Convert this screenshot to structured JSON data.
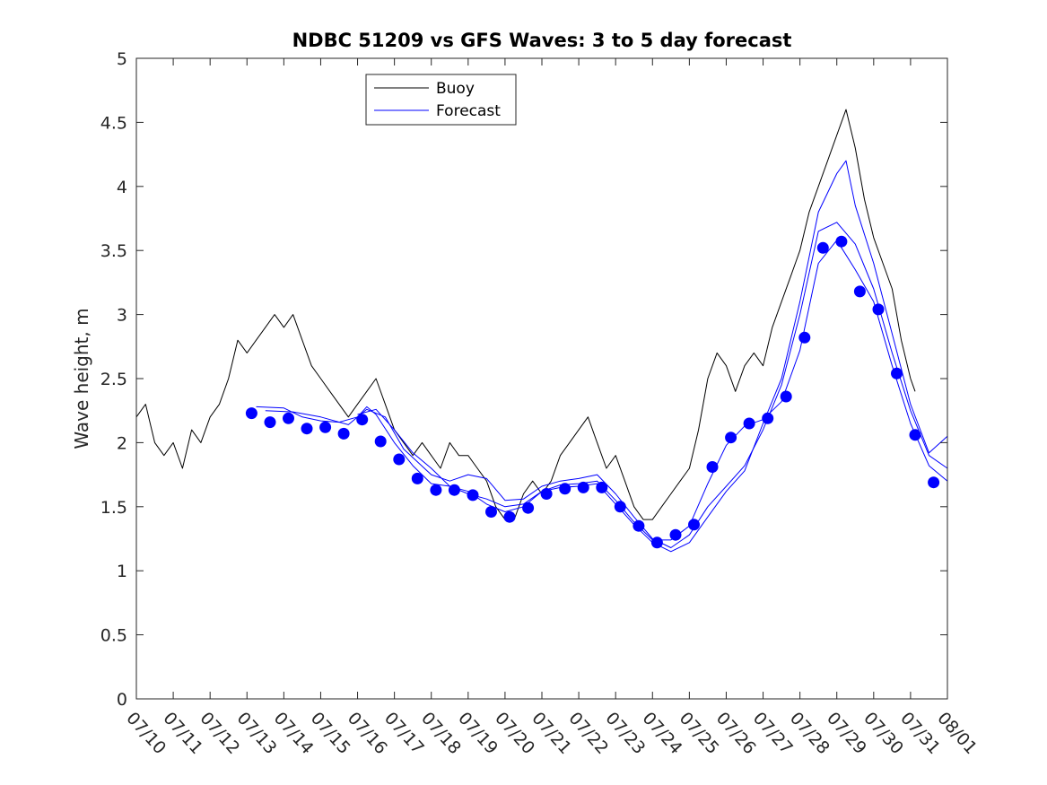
{
  "chart_data": {
    "type": "line",
    "title": "NDBC 51209 vs GFS Waves: 3 to 5 day forecast",
    "xlabel": "",
    "ylabel": "Wave height, m",
    "xlim": [
      "07/10",
      "08/01"
    ],
    "ylim": [
      0,
      5
    ],
    "x_ticks": [
      "07/10",
      "07/11",
      "07/12",
      "07/13",
      "07/14",
      "07/15",
      "07/16",
      "07/17",
      "07/18",
      "07/19",
      "07/20",
      "07/21",
      "07/22",
      "07/23",
      "07/24",
      "07/25",
      "07/26",
      "07/27",
      "07/28",
      "07/29",
      "07/30",
      "07/31",
      "08/01"
    ],
    "y_ticks": [
      "0",
      "0.5",
      "1",
      "1.5",
      "2",
      "2.5",
      "3",
      "3.5",
      "4",
      "4.5",
      "5"
    ],
    "grid": false,
    "legend": {
      "position": "top-left",
      "entries": [
        "Buoy",
        "Forecast"
      ]
    },
    "colors": {
      "buoy": "#000000",
      "forecast": "#0000ff"
    },
    "series": [
      {
        "name": "Buoy",
        "style": "line",
        "points": [
          [
            "07/10 00:00",
            2.2
          ],
          [
            "07/10 06:00",
            2.3
          ],
          [
            "07/10 12:00",
            2.0
          ],
          [
            "07/10 18:00",
            1.9
          ],
          [
            "07/11 00:00",
            2.0
          ],
          [
            "07/11 06:00",
            1.8
          ],
          [
            "07/11 12:00",
            2.1
          ],
          [
            "07/11 18:00",
            2.0
          ],
          [
            "07/12 00:00",
            2.2
          ],
          [
            "07/12 06:00",
            2.3
          ],
          [
            "07/12 12:00",
            2.5
          ],
          [
            "07/12 18:00",
            2.8
          ],
          [
            "07/13 00:00",
            2.7
          ],
          [
            "07/13 06:00",
            2.8
          ],
          [
            "07/13 12:00",
            2.9
          ],
          [
            "07/13 18:00",
            3.0
          ],
          [
            "07/14 00:00",
            2.9
          ],
          [
            "07/14 06:00",
            3.0
          ],
          [
            "07/14 12:00",
            2.8
          ],
          [
            "07/14 18:00",
            2.6
          ],
          [
            "07/15 00:00",
            2.5
          ],
          [
            "07/15 06:00",
            2.4
          ],
          [
            "07/15 12:00",
            2.3
          ],
          [
            "07/15 18:00",
            2.2
          ],
          [
            "07/16 00:00",
            2.3
          ],
          [
            "07/16 06:00",
            2.4
          ],
          [
            "07/16 12:00",
            2.5
          ],
          [
            "07/16 18:00",
            2.3
          ],
          [
            "07/17 00:00",
            2.1
          ],
          [
            "07/17 06:00",
            2.0
          ],
          [
            "07/17 12:00",
            1.9
          ],
          [
            "07/17 18:00",
            2.0
          ],
          [
            "07/18 00:00",
            1.9
          ],
          [
            "07/18 06:00",
            1.8
          ],
          [
            "07/18 12:00",
            2.0
          ],
          [
            "07/18 18:00",
            1.9
          ],
          [
            "07/19 00:00",
            1.9
          ],
          [
            "07/19 06:00",
            1.8
          ],
          [
            "07/19 12:00",
            1.7
          ],
          [
            "07/19 18:00",
            1.5
          ],
          [
            "07/20 00:00",
            1.4
          ],
          [
            "07/20 06:00",
            1.4
          ],
          [
            "07/20 12:00",
            1.6
          ],
          [
            "07/20 18:00",
            1.7
          ],
          [
            "07/21 00:00",
            1.6
          ],
          [
            "07/21 06:00",
            1.7
          ],
          [
            "07/21 12:00",
            1.9
          ],
          [
            "07/21 18:00",
            2.0
          ],
          [
            "07/22 00:00",
            2.1
          ],
          [
            "07/22 06:00",
            2.2
          ],
          [
            "07/22 12:00",
            2.0
          ],
          [
            "07/22 18:00",
            1.8
          ],
          [
            "07/23 00:00",
            1.9
          ],
          [
            "07/23 06:00",
            1.7
          ],
          [
            "07/23 12:00",
            1.5
          ],
          [
            "07/23 18:00",
            1.4
          ],
          [
            "07/24 00:00",
            1.4
          ],
          [
            "07/24 06:00",
            1.5
          ],
          [
            "07/24 12:00",
            1.6
          ],
          [
            "07/24 18:00",
            1.7
          ],
          [
            "07/25 00:00",
            1.8
          ],
          [
            "07/25 06:00",
            2.1
          ],
          [
            "07/25 12:00",
            2.5
          ],
          [
            "07/25 18:00",
            2.7
          ],
          [
            "07/26 00:00",
            2.6
          ],
          [
            "07/26 06:00",
            2.4
          ],
          [
            "07/26 12:00",
            2.6
          ],
          [
            "07/26 18:00",
            2.7
          ],
          [
            "07/27 00:00",
            2.6
          ],
          [
            "07/27 06:00",
            2.9
          ],
          [
            "07/27 12:00",
            3.1
          ],
          [
            "07/27 18:00",
            3.3
          ],
          [
            "07/28 00:00",
            3.5
          ],
          [
            "07/28 06:00",
            3.8
          ],
          [
            "07/28 12:00",
            4.0
          ],
          [
            "07/28 18:00",
            4.2
          ],
          [
            "07/29 00:00",
            4.4
          ],
          [
            "07/29 06:00",
            4.6
          ],
          [
            "07/29 12:00",
            4.3
          ],
          [
            "07/29 18:00",
            3.9
          ],
          [
            "07/30 00:00",
            3.6
          ],
          [
            "07/30 06:00",
            3.4
          ],
          [
            "07/30 12:00",
            3.2
          ],
          [
            "07/30 18:00",
            2.8
          ],
          [
            "07/31 00:00",
            2.5
          ],
          [
            "07/31 03:00",
            2.4
          ]
        ]
      },
      {
        "name": "Forecast",
        "style": "markers",
        "points": [
          [
            "07/13 03:00",
            2.23
          ],
          [
            "07/13 15:00",
            2.16
          ],
          [
            "07/14 03:00",
            2.19
          ],
          [
            "07/14 15:00",
            2.11
          ],
          [
            "07/15 03:00",
            2.12
          ],
          [
            "07/15 15:00",
            2.07
          ],
          [
            "07/16 03:00",
            2.18
          ],
          [
            "07/16 15:00",
            2.01
          ],
          [
            "07/17 03:00",
            1.87
          ],
          [
            "07/17 15:00",
            1.72
          ],
          [
            "07/18 03:00",
            1.63
          ],
          [
            "07/18 15:00",
            1.63
          ],
          [
            "07/19 03:00",
            1.59
          ],
          [
            "07/19 15:00",
            1.46
          ],
          [
            "07/20 03:00",
            1.42
          ],
          [
            "07/20 15:00",
            1.49
          ],
          [
            "07/21 03:00",
            1.6
          ],
          [
            "07/21 15:00",
            1.64
          ],
          [
            "07/22 03:00",
            1.65
          ],
          [
            "07/22 15:00",
            1.65
          ],
          [
            "07/23 03:00",
            1.5
          ],
          [
            "07/23 15:00",
            1.35
          ],
          [
            "07/24 03:00",
            1.22
          ],
          [
            "07/24 15:00",
            1.28
          ],
          [
            "07/25 03:00",
            1.36
          ],
          [
            "07/25 15:00",
            1.81
          ],
          [
            "07/26 03:00",
            2.04
          ],
          [
            "07/26 15:00",
            2.15
          ],
          [
            "07/27 03:00",
            2.19
          ],
          [
            "07/27 15:00",
            2.36
          ],
          [
            "07/28 03:00",
            2.82
          ],
          [
            "07/28 15:00",
            3.52
          ],
          [
            "07/29 03:00",
            3.57
          ],
          [
            "07/29 15:00",
            3.18
          ],
          [
            "07/30 03:00",
            3.04
          ],
          [
            "07/30 15:00",
            2.54
          ],
          [
            "07/31 03:00",
            2.06
          ],
          [
            "07/31 15:00",
            1.69
          ]
        ]
      },
      {
        "name": "",
        "style": "line",
        "points": [
          [
            "07/13 06:00",
            2.28
          ],
          [
            "07/14 00:00",
            2.27
          ],
          [
            "07/14 12:00",
            2.2
          ],
          [
            "07/15 00:00",
            2.17
          ],
          [
            "07/15 12:00",
            2.16
          ],
          [
            "07/16 00:00",
            2.2
          ],
          [
            "07/16 06:00",
            2.28
          ],
          [
            "07/16 12:00",
            2.22
          ],
          [
            "07/17 00:00",
            2.0
          ],
          [
            "07/17 12:00",
            1.82
          ],
          [
            "07/18 00:00",
            1.68
          ],
          [
            "07/18 12:00",
            1.66
          ],
          [
            "07/19 00:00",
            1.62
          ],
          [
            "07/19 12:00",
            1.52
          ],
          [
            "07/20 00:00",
            1.46
          ],
          [
            "07/20 12:00",
            1.5
          ],
          [
            "07/21 00:00",
            1.62
          ],
          [
            "07/21 12:00",
            1.67
          ],
          [
            "07/22 00:00",
            1.68
          ],
          [
            "07/22 12:00",
            1.7
          ],
          [
            "07/23 00:00",
            1.55
          ],
          [
            "07/23 12:00",
            1.38
          ],
          [
            "07/24 00:00",
            1.24
          ],
          [
            "07/24 12:00",
            1.24
          ],
          [
            "07/25 00:00",
            1.35
          ],
          [
            "07/25 12:00",
            1.68
          ],
          [
            "07/26 00:00",
            1.98
          ],
          [
            "07/26 12:00",
            2.13
          ],
          [
            "07/27 00:00",
            2.18
          ],
          [
            "07/27 12:00",
            2.32
          ],
          [
            "07/28 00:00",
            2.72
          ],
          [
            "07/28 12:00",
            3.4
          ],
          [
            "07/29 00:00",
            3.58
          ],
          [
            "07/29 12:00",
            3.35
          ],
          [
            "07/30 00:00",
            3.1
          ],
          [
            "07/30 12:00",
            2.6
          ],
          [
            "07/31 00:00",
            2.15
          ],
          [
            "07/31 12:00",
            1.82
          ],
          [
            "08/01 00:00",
            1.7
          ]
        ]
      },
      {
        "name": "",
        "style": "line",
        "points": [
          [
            "07/13 12:00",
            2.25
          ],
          [
            "07/14 06:00",
            2.24
          ],
          [
            "07/15 00:00",
            2.2
          ],
          [
            "07/15 18:00",
            2.14
          ],
          [
            "07/16 06:00",
            2.26
          ],
          [
            "07/16 18:00",
            2.2
          ],
          [
            "07/17 06:00",
            1.95
          ],
          [
            "07/18 00:00",
            1.75
          ],
          [
            "07/18 12:00",
            1.7
          ],
          [
            "07/19 00:00",
            1.75
          ],
          [
            "07/19 12:00",
            1.72
          ],
          [
            "07/20 00:00",
            1.55
          ],
          [
            "07/20 12:00",
            1.56
          ],
          [
            "07/21 00:00",
            1.66
          ],
          [
            "07/21 12:00",
            1.7
          ],
          [
            "07/22 00:00",
            1.72
          ],
          [
            "07/22 12:00",
            1.75
          ],
          [
            "07/23 00:00",
            1.6
          ],
          [
            "07/23 12:00",
            1.42
          ],
          [
            "07/24 00:00",
            1.25
          ],
          [
            "07/24 12:00",
            1.18
          ],
          [
            "07/25 00:00",
            1.28
          ],
          [
            "07/25 12:00",
            1.5
          ],
          [
            "07/26 00:00",
            1.66
          ],
          [
            "07/26 12:00",
            1.82
          ],
          [
            "07/27 00:00",
            2.1
          ],
          [
            "07/27 12:00",
            2.45
          ],
          [
            "07/28 00:00",
            3.0
          ],
          [
            "07/28 12:00",
            3.65
          ],
          [
            "07/29 00:00",
            3.72
          ],
          [
            "07/29 12:00",
            3.55
          ],
          [
            "07/30 00:00",
            3.2
          ],
          [
            "07/30 12:00",
            2.7
          ],
          [
            "07/31 00:00",
            2.25
          ],
          [
            "07/31 12:00",
            1.9
          ],
          [
            "08/01 00:00",
            1.8
          ]
        ]
      },
      {
        "name": "",
        "style": "line",
        "points": [
          [
            "07/16 00:00",
            2.22
          ],
          [
            "07/16 12:00",
            2.26
          ],
          [
            "07/17 00:00",
            2.1
          ],
          [
            "07/17 12:00",
            1.92
          ],
          [
            "07/18 00:00",
            1.8
          ],
          [
            "07/18 12:00",
            1.66
          ],
          [
            "07/19 00:00",
            1.6
          ],
          [
            "07/19 12:00",
            1.56
          ],
          [
            "07/20 00:00",
            1.5
          ],
          [
            "07/20 12:00",
            1.52
          ],
          [
            "07/21 00:00",
            1.62
          ],
          [
            "07/21 12:00",
            1.65
          ],
          [
            "07/22 00:00",
            1.66
          ],
          [
            "07/22 12:00",
            1.68
          ],
          [
            "07/23 00:00",
            1.52
          ],
          [
            "07/23 12:00",
            1.36
          ],
          [
            "07/24 00:00",
            1.22
          ],
          [
            "07/24 12:00",
            1.15
          ],
          [
            "07/25 00:00",
            1.22
          ],
          [
            "07/25 12:00",
            1.42
          ],
          [
            "07/26 00:00",
            1.62
          ],
          [
            "07/26 12:00",
            1.78
          ],
          [
            "07/27 00:00",
            2.15
          ],
          [
            "07/27 12:00",
            2.5
          ],
          [
            "07/28 00:00",
            3.1
          ],
          [
            "07/28 12:00",
            3.8
          ],
          [
            "07/29 00:00",
            4.1
          ],
          [
            "07/29 06:00",
            4.2
          ],
          [
            "07/29 12:00",
            3.85
          ],
          [
            "07/30 00:00",
            3.4
          ],
          [
            "07/30 12:00",
            2.85
          ],
          [
            "07/31 00:00",
            2.3
          ],
          [
            "07/31 12:00",
            1.92
          ],
          [
            "08/01 00:00",
            2.05
          ]
        ]
      }
    ]
  }
}
